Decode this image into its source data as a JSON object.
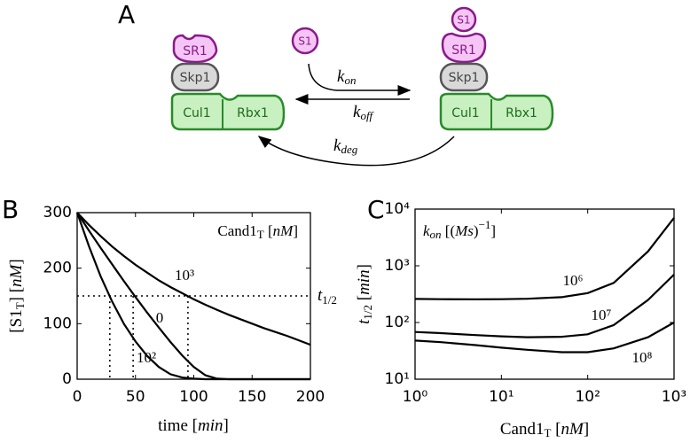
{
  "diagram": {
    "panel_label": "A",
    "left": {
      "SR1": "SR1",
      "Skp1": "Skp1",
      "Cul1": "Cul1",
      "Rbx1": "Rbx1"
    },
    "free_substrate": "S1",
    "right": {
      "S1": "S1",
      "SR1": "SR1",
      "Skp1": "Skp1",
      "Cul1": "Cul1",
      "Rbx1": "Rbx1"
    },
    "k_on": [
      "k",
      "on"
    ],
    "k_off": [
      "k",
      "off"
    ],
    "k_deg": [
      "k",
      "deg"
    ]
  },
  "chart_data": [
    {
      "type": "line",
      "panel_label": "B",
      "x_label": [
        "time [",
        "min",
        "]"
      ],
      "y_label": [
        "[S1",
        "T",
        "] [",
        "nM",
        "]"
      ],
      "legend_title": [
        "Cand1",
        "T",
        " [",
        "nM",
        "]"
      ],
      "x": [
        0,
        10,
        20,
        30,
        40,
        50,
        60,
        70,
        80,
        90,
        100,
        110,
        120,
        130,
        140,
        150,
        160,
        170,
        180,
        190,
        200
      ],
      "series": [
        {
          "name": "10³",
          "color": "#000000",
          "values": [
            300,
            278,
            258,
            239,
            222,
            206,
            192,
            178,
            166,
            155,
            144,
            134,
            125,
            116,
            108,
            100,
            92,
            85,
            78,
            70,
            62
          ]
        },
        {
          "name": "0",
          "color": "#000000",
          "values": [
            300,
            268,
            237,
            207,
            177,
            148,
            120,
            93,
            67,
            43,
            22,
            7,
            1,
            0,
            0,
            0,
            0,
            0,
            0,
            0,
            0
          ]
        },
        {
          "name": "10²",
          "color": "#000000",
          "values": [
            300,
            240,
            186,
            140,
            100,
            68,
            42,
            22,
            9,
            3,
            1,
            0,
            0,
            0,
            0,
            0,
            0,
            0,
            0,
            0,
            0
          ]
        }
      ],
      "half_level": 150,
      "half_life_times": [
        28,
        48,
        95
      ],
      "half_label": [
        "t",
        "1/2"
      ],
      "xlim": [
        0,
        200
      ],
      "ylim": [
        0,
        300
      ],
      "xticks": [
        0,
        50,
        100,
        150,
        200
      ],
      "yticks": [
        0,
        100,
        200,
        300
      ]
    },
    {
      "type": "line",
      "panel_label": "C",
      "log_x": true,
      "log_y": true,
      "x_label": [
        "Cand1",
        "T",
        " [",
        "nM",
        "]"
      ],
      "y_label": [
        "t",
        "1/2",
        " [",
        "min",
        "]"
      ],
      "legend_title": [
        "k",
        "on",
        " [(",
        "Ms",
        ")",
        "−1",
        "]"
      ],
      "x": [
        1,
        2,
        5,
        10,
        20,
        50,
        100,
        200,
        500,
        1000
      ],
      "series": [
        {
          "name": "10⁶",
          "color": "#000000",
          "values": [
            260,
            258,
            257,
            258,
            262,
            280,
            330,
            500,
            1800,
            7000
          ]
        },
        {
          "name": "10⁷",
          "color": "#000000",
          "values": [
            68,
            65,
            60,
            57,
            55,
            56,
            62,
            90,
            250,
            700
          ]
        },
        {
          "name": "10⁸",
          "color": "#000000",
          "values": [
            48,
            45,
            40,
            36,
            33,
            30,
            30,
            35,
            55,
            100
          ]
        }
      ],
      "xlim": [
        1,
        1000
      ],
      "ylim": [
        10,
        10000
      ],
      "xticks": [
        {
          "value": 1,
          "label": "10⁰"
        },
        {
          "value": 10,
          "label": "10¹"
        },
        {
          "value": 100,
          "label": "10²"
        },
        {
          "value": 1000,
          "label": "10³"
        }
      ],
      "yticks": [
        {
          "value": 10,
          "label": "10¹"
        },
        {
          "value": 100,
          "label": "10²"
        },
        {
          "value": 1000,
          "label": "10³"
        },
        {
          "value": 10000,
          "label": "10⁴"
        }
      ]
    }
  ]
}
